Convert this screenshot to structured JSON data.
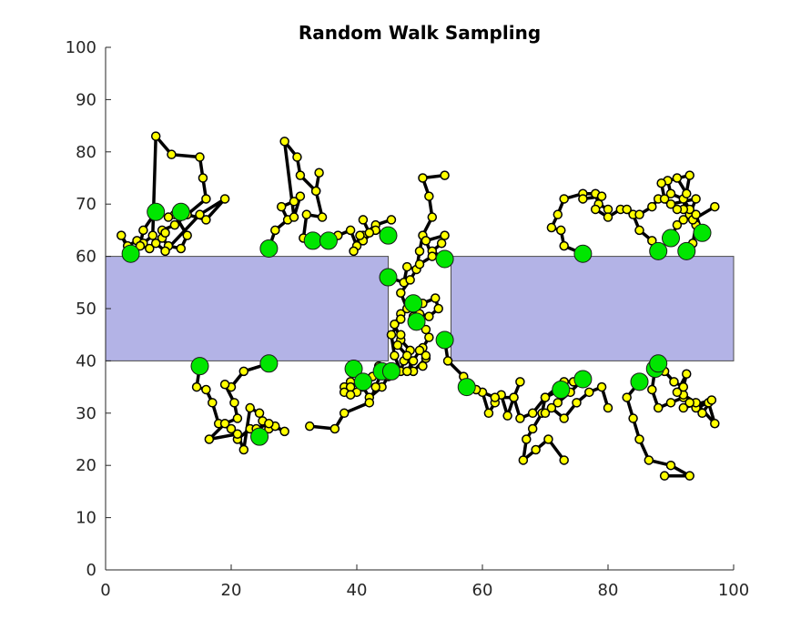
{
  "chart_data": {
    "type": "scatter",
    "title": "Random Walk Sampling",
    "xlabel": "",
    "ylabel": "",
    "xlim": [
      0,
      100
    ],
    "ylim": [
      0,
      100
    ],
    "x_ticks": [
      0,
      20,
      40,
      60,
      80,
      100
    ],
    "y_ticks": [
      0,
      10,
      20,
      30,
      40,
      50,
      60,
      70,
      80,
      90,
      100
    ],
    "grid": false,
    "legend": "none",
    "obstacles": [
      {
        "x0": 0,
        "x1": 45,
        "y0": 40,
        "y1": 60
      },
      {
        "x0": 55,
        "x1": 100,
        "y0": 40,
        "y1": 60
      }
    ],
    "colors": {
      "obstacle_fill": "#b3b3e6",
      "obstacle_edge": "#4d4d4d",
      "path": "#000000",
      "sample_fill": "#ffff00",
      "start_fill": "#00e600",
      "axis": "#262626"
    },
    "series": [
      {
        "points": [
          [
            4,
            60.5
          ],
          [
            2.5,
            64
          ],
          [
            3.5,
            62
          ],
          [
            5,
            63
          ],
          [
            6,
            62.5
          ],
          [
            7.5,
            64
          ],
          [
            8,
            83
          ],
          [
            10.5,
            79.5
          ],
          [
            15,
            79
          ],
          [
            15.5,
            75
          ],
          [
            16,
            71
          ],
          [
            13,
            68
          ],
          [
            11,
            66
          ],
          [
            9,
            65
          ]
        ]
      },
      {
        "points": [
          [
            8,
            68.5
          ],
          [
            6,
            65
          ],
          [
            5.5,
            62
          ],
          [
            7,
            61.5
          ],
          [
            9,
            63.5
          ],
          [
            10,
            62
          ],
          [
            12,
            61.5
          ],
          [
            13,
            64
          ],
          [
            11,
            68
          ]
        ]
      },
      {
        "points": [
          [
            12,
            68.5
          ],
          [
            10,
            67.5
          ],
          [
            13,
            68
          ],
          [
            16,
            67
          ],
          [
            19,
            71
          ],
          [
            15,
            68
          ],
          [
            9.5,
            61
          ],
          [
            8,
            62.5
          ],
          [
            9.5,
            64.5
          ]
        ]
      },
      {
        "points": [
          [
            26,
            61.5
          ],
          [
            27,
            65
          ],
          [
            29,
            67
          ],
          [
            28,
            69.5
          ],
          [
            30,
            70.5
          ],
          [
            31,
            71.5
          ],
          [
            30,
            67.5
          ],
          [
            28.5,
            82
          ],
          [
            30.5,
            79
          ],
          [
            31,
            75.5
          ],
          [
            33.5,
            72.5
          ]
        ]
      },
      {
        "points": [
          [
            33,
            63
          ],
          [
            31.5,
            63.5
          ],
          [
            32,
            68
          ],
          [
            34.5,
            67.5
          ],
          [
            33.5,
            72.5
          ],
          [
            34,
            76
          ]
        ]
      },
      {
        "points": [
          [
            35.5,
            63
          ],
          [
            37,
            64
          ],
          [
            39,
            65
          ],
          [
            40,
            62
          ],
          [
            41,
            64
          ],
          [
            43,
            66
          ],
          [
            45.5,
            67
          ]
        ]
      },
      {
        "points": [
          [
            45,
            64
          ],
          [
            43,
            65
          ],
          [
            41,
            63
          ],
          [
            39.5,
            61
          ],
          [
            40.5,
            64
          ],
          [
            42,
            64.5
          ],
          [
            41,
            67
          ]
        ]
      },
      {
        "points": [
          [
            45,
            56
          ],
          [
            47.5,
            55
          ],
          [
            48,
            58
          ],
          [
            49.5,
            57.5
          ],
          [
            50,
            61
          ],
          [
            50.5,
            64
          ],
          [
            52,
            67.5
          ],
          [
            51.5,
            71.5
          ],
          [
            50.5,
            75
          ],
          [
            54,
            75.5
          ]
        ]
      },
      {
        "points": [
          [
            49,
            51
          ],
          [
            47,
            49
          ],
          [
            46,
            47
          ],
          [
            47,
            44
          ],
          [
            48.5,
            42
          ],
          [
            47.5,
            40
          ],
          [
            47,
            38
          ],
          [
            46,
            41
          ],
          [
            45.5,
            45
          ],
          [
            47,
            48
          ]
        ]
      },
      {
        "points": [
          [
            49.5,
            47.5
          ],
          [
            51,
            46
          ],
          [
            51.5,
            44.5
          ],
          [
            50.5,
            42.5
          ],
          [
            51,
            40.5
          ],
          [
            49,
            38
          ],
          [
            48,
            41
          ],
          [
            46.5,
            43
          ],
          [
            47,
            45
          ]
        ]
      },
      {
        "points": [
          [
            54,
            59.5
          ],
          [
            52,
            61
          ],
          [
            53.5,
            62.5
          ],
          [
            54,
            64
          ],
          [
            51,
            63
          ],
          [
            52,
            60
          ],
          [
            50,
            58.5
          ],
          [
            48.5,
            55.5
          ],
          [
            47,
            53
          ],
          [
            48,
            50
          ],
          [
            50,
            49
          ],
          [
            51.5,
            48.5
          ],
          [
            53,
            50
          ],
          [
            52.5,
            52
          ],
          [
            50.5,
            51
          ],
          [
            49,
            48.5
          ]
        ]
      },
      {
        "points": [
          [
            54,
            44
          ],
          [
            54.5,
            40
          ],
          [
            57,
            37
          ],
          [
            58,
            35
          ],
          [
            60,
            34
          ],
          [
            61,
            30
          ],
          [
            62,
            32
          ],
          [
            63,
            33.5
          ],
          [
            64,
            29.5
          ],
          [
            65,
            33
          ],
          [
            66,
            36
          ]
        ]
      },
      {
        "points": [
          [
            57.5,
            35
          ],
          [
            59,
            34.5
          ],
          [
            62,
            33
          ],
          [
            65,
            33
          ],
          [
            66,
            29
          ],
          [
            68,
            30
          ],
          [
            70,
            33
          ],
          [
            72,
            35
          ],
          [
            73,
            36
          ],
          [
            74.5,
            36
          ]
        ]
      },
      {
        "points": [
          [
            72.5,
            34.5
          ],
          [
            70,
            33
          ],
          [
            69.5,
            30
          ],
          [
            68,
            27
          ],
          [
            67,
            25
          ],
          [
            66.5,
            21
          ],
          [
            68.5,
            23
          ],
          [
            70.5,
            25
          ],
          [
            73,
            21
          ]
        ]
      },
      {
        "points": [
          [
            76,
            36.5
          ],
          [
            74,
            34
          ],
          [
            72,
            32
          ],
          [
            70,
            30
          ],
          [
            71,
            31
          ],
          [
            73,
            29
          ],
          [
            75,
            32
          ],
          [
            77,
            34
          ],
          [
            79,
            35
          ],
          [
            80,
            31
          ]
        ]
      },
      {
        "points": [
          [
            76,
            60.5
          ],
          [
            73,
            62
          ],
          [
            72.5,
            65
          ],
          [
            71,
            65.5
          ],
          [
            72,
            68
          ],
          [
            73,
            71
          ],
          [
            76,
            72
          ],
          [
            78,
            72
          ],
          [
            78.5,
            70
          ],
          [
            80,
            69
          ]
        ]
      },
      {
        "points": [
          [
            88,
            61
          ],
          [
            87,
            63
          ],
          [
            85,
            65
          ],
          [
            84,
            68
          ],
          [
            82,
            69
          ],
          [
            80,
            67.5
          ],
          [
            78,
            69
          ],
          [
            79,
            71.5
          ],
          [
            76,
            71
          ]
        ]
      },
      {
        "points": [
          [
            90,
            63.5
          ],
          [
            91,
            66
          ],
          [
            92,
            67
          ],
          [
            93,
            68
          ],
          [
            94,
            71
          ],
          [
            90,
            70
          ],
          [
            88,
            71
          ],
          [
            87,
            69.5
          ],
          [
            85,
            68
          ],
          [
            83,
            69
          ]
        ]
      },
      {
        "points": [
          [
            92.5,
            61
          ],
          [
            93.5,
            62.5
          ],
          [
            94,
            66
          ],
          [
            93,
            69
          ],
          [
            92,
            71
          ],
          [
            90,
            72
          ],
          [
            89.5,
            74.5
          ],
          [
            93,
            75.5
          ],
          [
            92,
            69
          ],
          [
            93.5,
            67
          ],
          [
            97,
            69.5
          ]
        ]
      },
      {
        "points": [
          [
            95,
            64.5
          ],
          [
            94,
            68
          ],
          [
            91,
            69
          ],
          [
            89,
            71
          ],
          [
            88.5,
            74
          ],
          [
            91,
            75
          ],
          [
            92.5,
            72
          ]
        ]
      },
      {
        "points": [
          [
            85,
            36
          ],
          [
            83,
            33
          ],
          [
            84,
            29
          ],
          [
            85,
            25
          ],
          [
            86.5,
            21
          ],
          [
            90,
            20
          ],
          [
            93,
            18
          ],
          [
            89,
            18
          ]
        ]
      },
      {
        "points": [
          [
            87.5,
            38.5
          ],
          [
            87,
            34.5
          ],
          [
            88,
            31
          ],
          [
            90,
            32
          ],
          [
            92,
            33
          ],
          [
            94,
            31
          ],
          [
            96,
            32
          ],
          [
            97,
            28
          ],
          [
            94,
            32
          ],
          [
            92,
            33.5
          ]
        ]
      },
      {
        "points": [
          [
            88,
            39.5
          ],
          [
            89,
            38
          ],
          [
            90.5,
            36
          ],
          [
            92,
            35
          ],
          [
            92.5,
            37.5
          ],
          [
            91,
            34
          ],
          [
            93,
            32
          ],
          [
            95,
            30
          ],
          [
            96.5,
            32.5
          ],
          [
            92,
            31
          ]
        ]
      },
      {
        "points": [
          [
            15,
            39
          ],
          [
            14.5,
            35
          ],
          [
            16,
            34.5
          ],
          [
            17,
            32
          ],
          [
            18,
            28
          ],
          [
            20,
            27
          ],
          [
            21,
            25
          ],
          [
            23,
            27
          ],
          [
            24,
            25
          ]
        ]
      },
      {
        "points": [
          [
            26,
            39.5
          ],
          [
            22,
            38
          ],
          [
            20,
            35
          ],
          [
            19,
            35.5
          ],
          [
            20.5,
            32
          ],
          [
            21,
            29
          ],
          [
            19,
            28
          ],
          [
            16.5,
            25
          ],
          [
            21,
            26
          ],
          [
            22,
            23
          ],
          [
            23,
            31
          ],
          [
            24.5,
            30
          ]
        ]
      },
      {
        "points": [
          [
            24.5,
            25.5
          ],
          [
            25,
            28.5
          ],
          [
            26,
            27
          ],
          [
            27,
            27.5
          ],
          [
            28.5,
            26.5
          ],
          [
            26,
            28
          ],
          [
            24,
            27
          ]
        ]
      },
      {
        "points": [
          [
            39.5,
            38.5
          ],
          [
            39,
            36
          ],
          [
            38,
            35
          ],
          [
            40,
            34
          ],
          [
            41,
            35
          ],
          [
            42,
            33
          ],
          [
            44,
            35
          ],
          [
            45,
            37
          ]
        ]
      },
      {
        "points": [
          [
            41,
            36
          ],
          [
            39,
            35
          ],
          [
            38,
            34
          ],
          [
            39,
            33.5
          ],
          [
            41,
            35.5
          ],
          [
            42.5,
            37
          ],
          [
            43.5,
            39
          ]
        ]
      },
      {
        "points": [
          [
            44,
            38
          ],
          [
            43,
            35
          ],
          [
            42,
            32
          ],
          [
            38,
            30
          ],
          [
            36.5,
            27
          ],
          [
            32.5,
            27.5
          ]
        ]
      },
      {
        "points": [
          [
            45.5,
            38
          ],
          [
            48,
            38
          ],
          [
            49,
            40
          ],
          [
            50,
            42
          ],
          [
            51,
            41
          ],
          [
            50.5,
            39
          ]
        ]
      }
    ]
  }
}
